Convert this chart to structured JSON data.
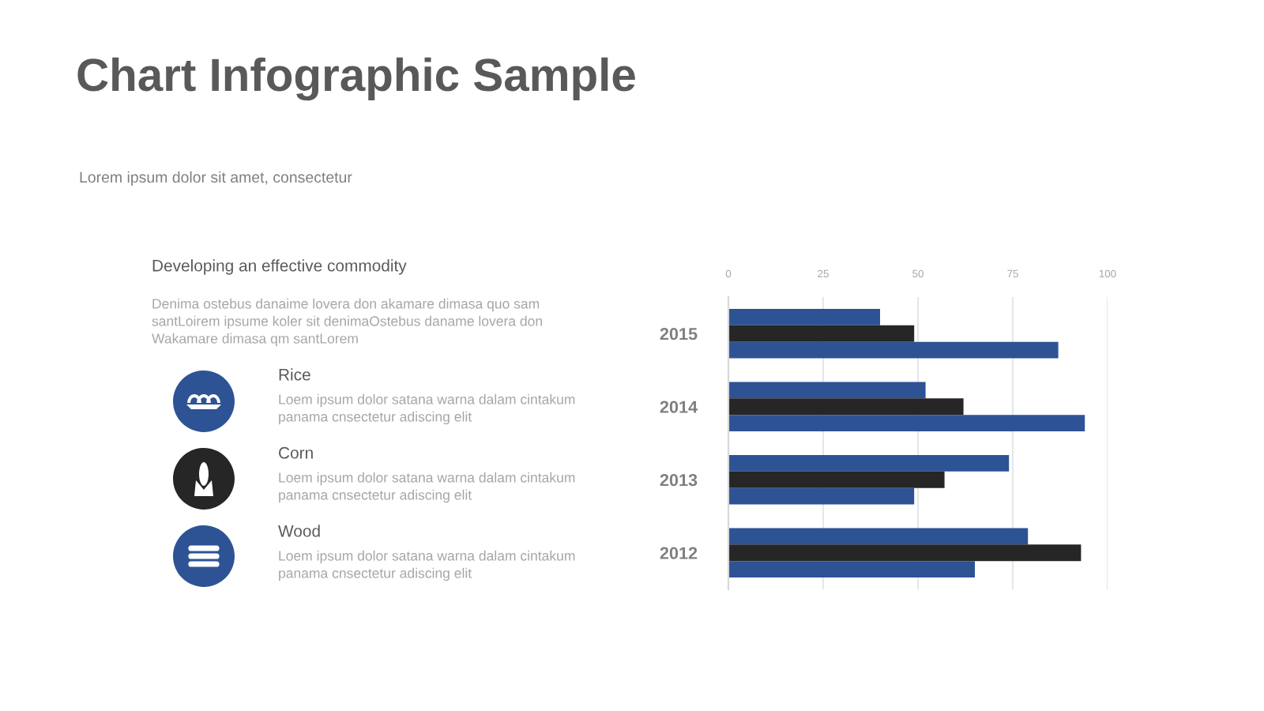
{
  "chart_data": {
    "type": "bar",
    "orientation": "horizontal",
    "title": "Chart Infographic Sample",
    "subtitle": "Lorem ipsum dolor sit amet, consectetur",
    "categories": [
      "2015",
      "2014",
      "2013",
      "2012"
    ],
    "series": [
      {
        "color": "#2e5395",
        "values": [
          40,
          52,
          74,
          79
        ]
      },
      {
        "color": "#262626",
        "values": [
          49,
          62,
          57,
          93
        ]
      },
      {
        "color": "#2e5395",
        "values": [
          87,
          94,
          49,
          65
        ]
      }
    ],
    "xlim": [
      0,
      100
    ],
    "xticks": [
      0,
      25,
      50,
      75,
      100
    ],
    "grid": "x",
    "annotations": [
      "Developing an effective commodity",
      "Denima ostebus danaime lovera don akamare dimasa quo sam\nsantLoirem ipsume koler sit denimaOstebus daname lovera don\nWakamare dimasa qm santLorem",
      "Rice",
      "Loem ipsum dolor satana warna dalam cintakum\npanama cnsectetur adiscing elit",
      "Corn",
      "Loem ipsum dolor satana warna dalam cintakum\npanama cnsectetur adiscing elit",
      "Wood",
      "Loem ipsum dolor satana warna dalam cintakum\npanama cnsectetur adiscing elit"
    ]
  }
}
